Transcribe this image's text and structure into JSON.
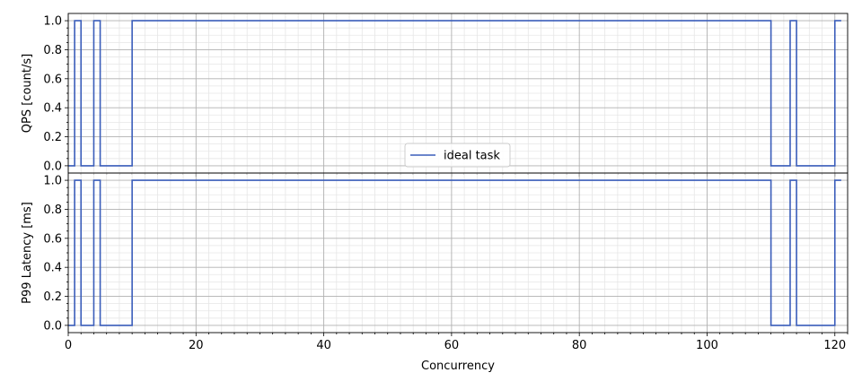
{
  "chart_data": {
    "type": "line",
    "drawstyle": "steps-post",
    "xlabel": "Concurrency",
    "xlim": [
      0,
      122
    ],
    "x_ticks": [
      0,
      20,
      40,
      60,
      80,
      100,
      120
    ],
    "minor_grid": true,
    "grid": true,
    "legend": {
      "placement": "bottom-center of top panel",
      "entries": [
        "ideal task"
      ]
    },
    "colors": {
      "series": "#3a5dba",
      "major_grid": "#b0b0b0",
      "minor_grid": "#e6e6e6"
    },
    "subplots": [
      {
        "ylabel": "QPS [count/s]",
        "ylim": [
          -0.05,
          1.05
        ],
        "y_ticks": [
          "0.0",
          "0.2",
          "0.4",
          "0.6",
          "0.8",
          "1.0"
        ],
        "series": [
          {
            "name": "ideal task",
            "x": [
              0,
              1,
              2,
              4,
              5,
              10,
              110,
              113,
              114,
              120,
              121
            ],
            "y": [
              0,
              1,
              0,
              1,
              0,
              1,
              0,
              1,
              0,
              1,
              1
            ]
          }
        ]
      },
      {
        "ylabel": "P99 Latency [ms]",
        "ylim": [
          -0.05,
          1.05
        ],
        "y_ticks": [
          "0.0",
          "0.2",
          "0.4",
          "0.6",
          "0.8",
          "1.0"
        ],
        "series": [
          {
            "name": "ideal task",
            "x": [
              0,
              1,
              2,
              4,
              5,
              10,
              110,
              113,
              114,
              120,
              121
            ],
            "y": [
              0,
              1,
              0,
              1,
              0,
              1,
              0,
              1,
              0,
              1,
              1
            ]
          }
        ]
      }
    ]
  }
}
